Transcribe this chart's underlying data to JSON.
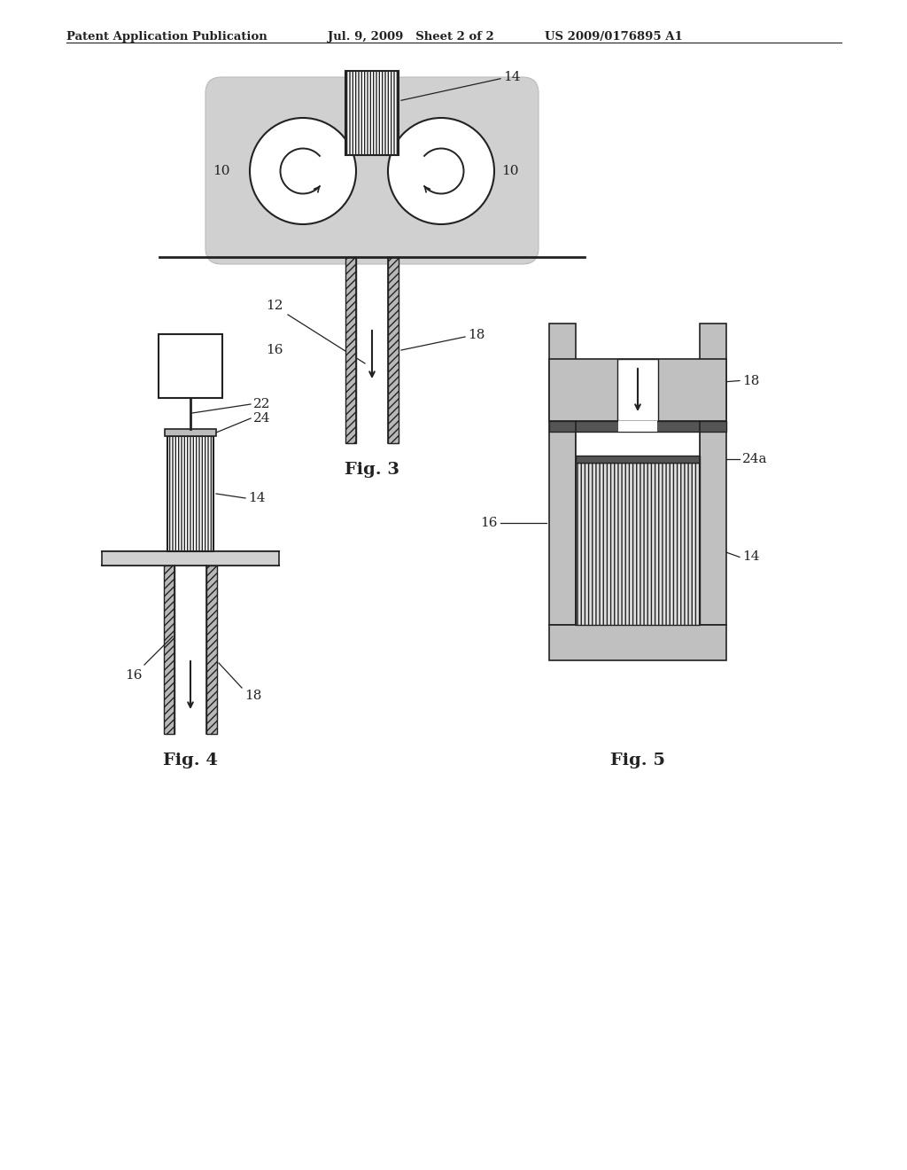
{
  "bg_color": "#ffffff",
  "header_left": "Patent Application Publication",
  "header_mid": "Jul. 9, 2009   Sheet 2 of 2",
  "header_right": "US 2009/0176895 A1",
  "fig3_label": "Fig. 3",
  "fig4_label": "Fig. 4",
  "fig5_label": "Fig. 5",
  "line_color": "#222222",
  "gray_light": "#c8c8c8",
  "gray_mid": "#999999",
  "gray_dark": "#666666",
  "gray_tube": "#aaaaaa"
}
